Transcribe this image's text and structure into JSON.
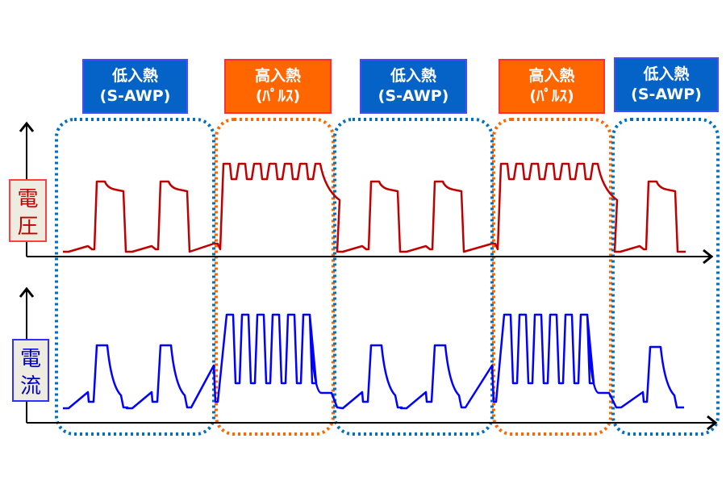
{
  "phases": [
    {
      "type": "low",
      "title": "低入熱",
      "sub": "(S-AWP)"
    },
    {
      "type": "high",
      "title": "高入熱",
      "sub": "(ﾊﾟﾙｽ)"
    },
    {
      "type": "low",
      "title": "低入熱",
      "sub": "(S-AWP)"
    },
    {
      "type": "high",
      "title": "高入熱",
      "sub": "(ﾊﾟﾙｽ)"
    },
    {
      "type": "low",
      "title": "低入熱",
      "sub": "(S-AWP)"
    }
  ],
  "axes": {
    "voltage": {
      "c1": "電",
      "c2": "圧"
    },
    "current": {
      "c1": "電",
      "c2": "流"
    }
  },
  "colors": {
    "low": "#0563c8",
    "high": "#ff6600",
    "voltage": "#c00000",
    "current": "#0000ff",
    "low_border": "#0070c0",
    "high_border": "#ff6600"
  }
}
